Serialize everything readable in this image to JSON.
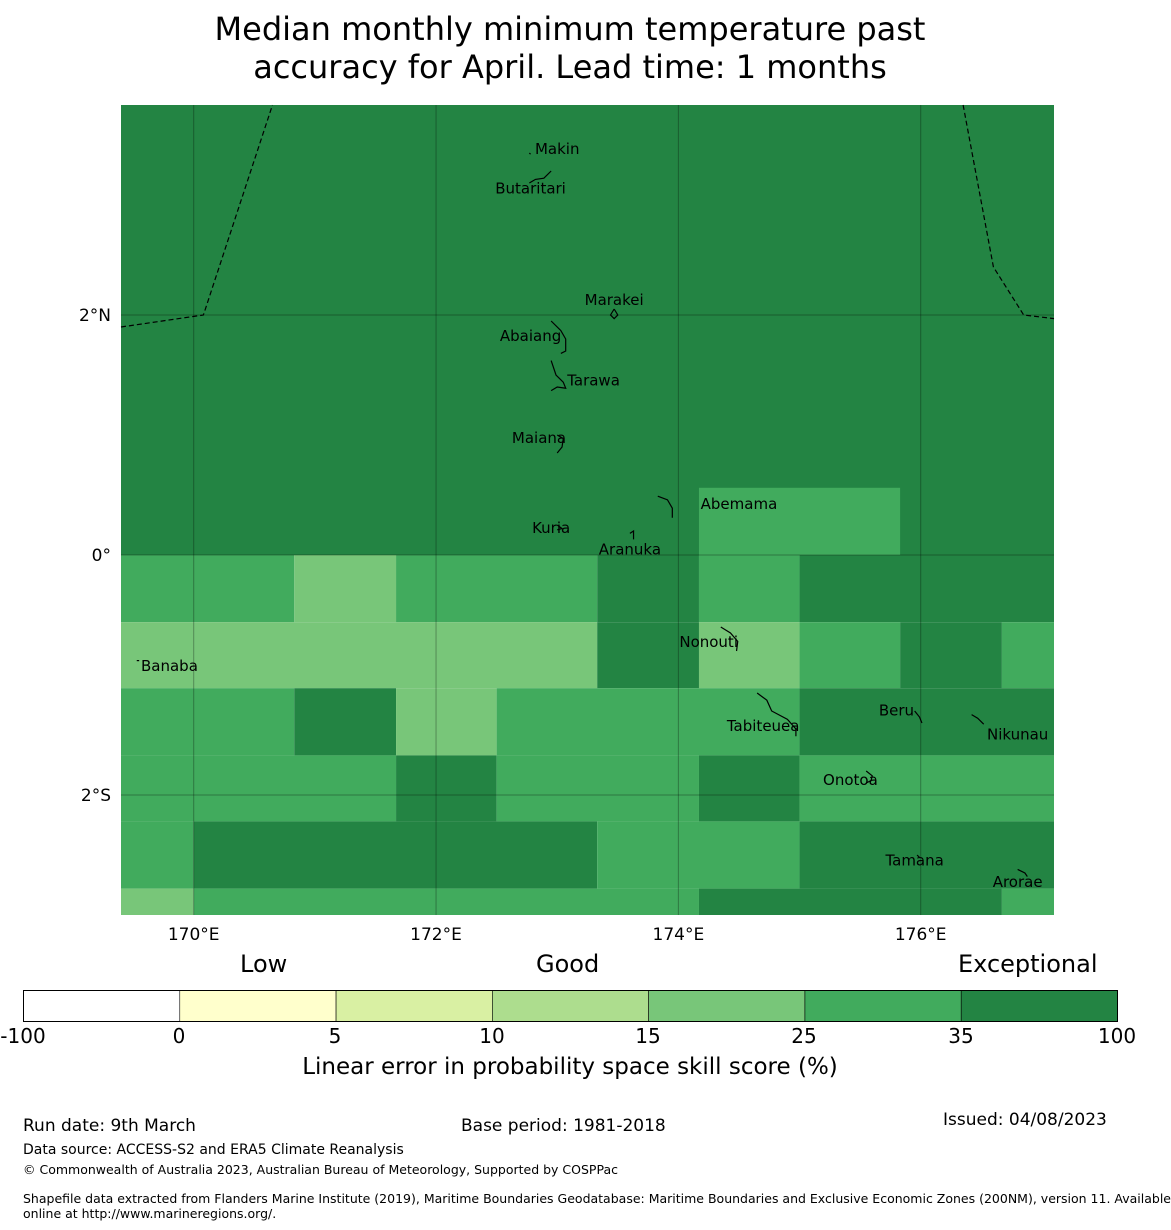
{
  "title": {
    "line1": "Median monthly minimum temperature past",
    "line2": "accuracy for April. Lead time: 1 months"
  },
  "map": {
    "lon_range": [
      169.4,
      177.1
    ],
    "lat_range": [
      -3.0,
      3.75
    ],
    "lon_ticks": [
      {
        "value": 170,
        "label": "170°E"
      },
      {
        "value": 172,
        "label": "172°E"
      },
      {
        "value": 174,
        "label": "174°E"
      },
      {
        "value": 176,
        "label": "176°E"
      }
    ],
    "lat_ticks": [
      {
        "value": 2,
        "label": "2°N"
      },
      {
        "value": 0,
        "label": "0°"
      },
      {
        "value": -2,
        "label": "2°S"
      }
    ],
    "grid_cells": [
      {
        "lon": [
          169.4,
          177.1
        ],
        "lat": [
          0.0,
          3.75
        ],
        "class": 6
      },
      {
        "lon": [
          174.17,
          175.83
        ],
        "lat": [
          0.0,
          0.56
        ],
        "class": 5
      },
      {
        "lon": [
          169.4,
          170.83
        ],
        "lat": [
          -0.56,
          0.0
        ],
        "class": 5
      },
      {
        "lon": [
          170.83,
          171.67
        ],
        "lat": [
          -0.56,
          0.0
        ],
        "class": 4
      },
      {
        "lon": [
          171.67,
          173.33
        ],
        "lat": [
          -0.56,
          0.0
        ],
        "class": 5
      },
      {
        "lon": [
          173.33,
          174.17
        ],
        "lat": [
          -0.56,
          0.0
        ],
        "class": 6
      },
      {
        "lon": [
          174.17,
          175.0
        ],
        "lat": [
          -0.56,
          0.0
        ],
        "class": 5
      },
      {
        "lon": [
          175.0,
          177.1
        ],
        "lat": [
          -0.56,
          0.0
        ],
        "class": 6
      },
      {
        "lon": [
          169.4,
          173.33
        ],
        "lat": [
          -1.11,
          -0.56
        ],
        "class": 4
      },
      {
        "lon": [
          173.33,
          174.17
        ],
        "lat": [
          -1.11,
          -0.56
        ],
        "class": 6
      },
      {
        "lon": [
          174.17,
          175.0
        ],
        "lat": [
          -1.11,
          -0.56
        ],
        "class": 4
      },
      {
        "lon": [
          175.0,
          175.83
        ],
        "lat": [
          -1.11,
          -0.56
        ],
        "class": 5
      },
      {
        "lon": [
          175.83,
          176.67
        ],
        "lat": [
          -1.11,
          -0.56
        ],
        "class": 6
      },
      {
        "lon": [
          176.67,
          177.1
        ],
        "lat": [
          -1.11,
          -0.56
        ],
        "class": 5
      },
      {
        "lon": [
          169.4,
          170.83
        ],
        "lat": [
          -1.67,
          -1.11
        ],
        "class": 5
      },
      {
        "lon": [
          170.83,
          171.67
        ],
        "lat": [
          -1.67,
          -1.11
        ],
        "class": 6
      },
      {
        "lon": [
          171.67,
          172.5
        ],
        "lat": [
          -1.67,
          -1.11
        ],
        "class": 4
      },
      {
        "lon": [
          172.5,
          175.0
        ],
        "lat": [
          -1.67,
          -1.11
        ],
        "class": 5
      },
      {
        "lon": [
          175.0,
          177.1
        ],
        "lat": [
          -1.67,
          -1.11
        ],
        "class": 6
      },
      {
        "lon": [
          169.4,
          171.67
        ],
        "lat": [
          -2.22,
          -1.67
        ],
        "class": 5
      },
      {
        "lon": [
          171.67,
          172.5
        ],
        "lat": [
          -2.22,
          -1.67
        ],
        "class": 6
      },
      {
        "lon": [
          172.5,
          174.17
        ],
        "lat": [
          -2.22,
          -1.67
        ],
        "class": 5
      },
      {
        "lon": [
          174.17,
          175.0
        ],
        "lat": [
          -2.22,
          -1.67
        ],
        "class": 6
      },
      {
        "lon": [
          175.0,
          177.1
        ],
        "lat": [
          -2.22,
          -1.67
        ],
        "class": 5
      },
      {
        "lon": [
          169.4,
          170.0
        ],
        "lat": [
          -2.78,
          -2.22
        ],
        "class": 5
      },
      {
        "lon": [
          170.0,
          173.33
        ],
        "lat": [
          -2.78,
          -2.22
        ],
        "class": 6
      },
      {
        "lon": [
          173.33,
          175.0
        ],
        "lat": [
          -2.78,
          -2.22
        ],
        "class": 5
      },
      {
        "lon": [
          175.0,
          177.1
        ],
        "lat": [
          -2.78,
          -2.22
        ],
        "class": 6
      },
      {
        "lon": [
          169.4,
          170.0
        ],
        "lat": [
          -3.0,
          -2.78
        ],
        "class": 4
      },
      {
        "lon": [
          170.0,
          174.17
        ],
        "lat": [
          -3.0,
          -2.78
        ],
        "class": 5
      },
      {
        "lon": [
          174.17,
          176.67
        ],
        "lat": [
          -3.0,
          -2.78
        ],
        "class": 6
      },
      {
        "lon": [
          176.67,
          177.1
        ],
        "lat": [
          -3.0,
          -2.78
        ],
        "class": 5
      }
    ],
    "eez_boundaries": [
      [
        [
          169.4,
          1.9
        ],
        [
          170.08,
          2.0
        ],
        [
          170.65,
          3.75
        ]
      ],
      [
        [
          176.35,
          3.75
        ],
        [
          176.6,
          2.4
        ],
        [
          176.85,
          2.0
        ],
        [
          177.1,
          1.97
        ]
      ]
    ],
    "islands": [
      {
        "name": "Makin",
        "lon": 173.0,
        "lat": 3.38
      },
      {
        "name": "Butaritari",
        "lon": 172.78,
        "lat": 3.05
      },
      {
        "name": "Marakei",
        "lon": 173.47,
        "lat": 2.12
      },
      {
        "name": "Abaiang",
        "lon": 172.78,
        "lat": 1.82
      },
      {
        "name": "Tarawa",
        "lon": 173.3,
        "lat": 1.45
      },
      {
        "name": "Maiana",
        "lon": 172.85,
        "lat": 0.97
      },
      {
        "name": "Abemama",
        "lon": 174.5,
        "lat": 0.42
      },
      {
        "name": "Kuria",
        "lon": 172.95,
        "lat": 0.22
      },
      {
        "name": "Aranuka",
        "lon": 173.6,
        "lat": 0.04
      },
      {
        "name": "Nonouti",
        "lon": 174.25,
        "lat": -0.73
      },
      {
        "name": "Banaba",
        "lon": 169.8,
        "lat": -0.93
      },
      {
        "name": "Beru",
        "lon": 175.8,
        "lat": -1.3
      },
      {
        "name": "Tabiteuea",
        "lon": 174.7,
        "lat": -1.43
      },
      {
        "name": "Nikunau",
        "lon": 176.8,
        "lat": -1.5
      },
      {
        "name": "Onotoa",
        "lon": 175.42,
        "lat": -1.88
      },
      {
        "name": "Tamana",
        "lon": 175.95,
        "lat": -2.55
      },
      {
        "name": "Arorae",
        "lon": 176.8,
        "lat": -2.73
      }
    ]
  },
  "colorbar": {
    "categories": [
      "Low",
      "Good",
      "Exceptional"
    ],
    "bins": [
      {
        "color": "#ffffff"
      },
      {
        "color": "#ffffcc"
      },
      {
        "color": "#d9f0a3"
      },
      {
        "color": "#addd8e"
      },
      {
        "color": "#78c679"
      },
      {
        "color": "#41ab5d"
      },
      {
        "color": "#238443"
      }
    ],
    "ticks": [
      "-100",
      "0",
      "5",
      "10",
      "15",
      "25",
      "35",
      "100"
    ],
    "title": "Linear error in probability space skill score (%)"
  },
  "footer": {
    "run_date": "Run date: 9th March",
    "base_period": "Base period: 1981-2018",
    "issued": "Issued: 04/08/2023",
    "data_source": "Data source: ACCESS-S2 and ERA5 Climate Reanalysis",
    "copyright": "© Commonwealth of Australia 2023, Australian Bureau of Meteorology, Supported by COSPPac",
    "shapefile_line1": "Shapefile data extracted from Flanders Marine Institute (2019), Maritime Boundaries Geodatabase: Maritime Boundaries and Exclusive Economic Zones (200NM), version 11. Available",
    "shapefile_line2": "online at http://www.marineregions.org/."
  }
}
